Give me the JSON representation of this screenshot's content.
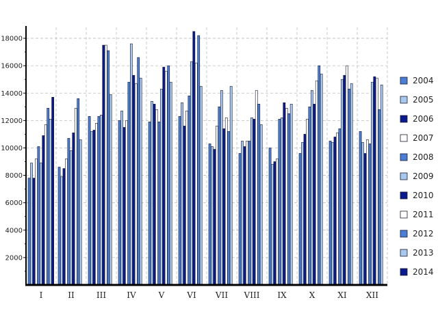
{
  "chart_data": {
    "type": "bar",
    "categories": [
      "I",
      "II",
      "III",
      "IV",
      "V",
      "VI",
      "VII",
      "VIII",
      "IX",
      "X",
      "XI",
      "XII"
    ],
    "ylim": [
      0,
      18800
    ],
    "yticks": [
      2000,
      4000,
      6000,
      8000,
      10000,
      12000,
      14000,
      16000,
      18000
    ],
    "grid": true,
    "legend_position": "right",
    "series": [
      {
        "name": "2004",
        "color": "#4a7fd4",
        "values": [
          7800,
          8600,
          12300,
          12000,
          11900,
          12300,
          10300,
          9600,
          10000,
          9600,
          10500,
          11200
        ]
      },
      {
        "name": "2005",
        "color": "#a9c8ef",
        "values": [
          8900,
          7900,
          11200,
          12700,
          13400,
          13300,
          10100,
          10500,
          8800,
          10400,
          10400,
          10400
        ]
      },
      {
        "name": "2006",
        "color": "#0a1a8c",
        "values": [
          7800,
          8500,
          11300,
          11500,
          13200,
          11600,
          9900,
          10100,
          9000,
          11000,
          10800,
          9600
        ]
      },
      {
        "name": "2007",
        "color": "#ffffff",
        "values": [
          9200,
          9200,
          11800,
          12000,
          12800,
          12700,
          11600,
          10500,
          9200,
          12100,
          11100,
          10600
        ]
      },
      {
        "name": "2008",
        "color": "#4a7fd4",
        "values": [
          10100,
          10700,
          12300,
          14800,
          11900,
          13800,
          13000,
          10500,
          12100,
          13000,
          11400,
          10300
        ]
      },
      {
        "name": "2009",
        "color": "#a9c8ef",
        "values": [
          8900,
          9800,
          12400,
          17600,
          14300,
          16300,
          14200,
          12200,
          12200,
          14200,
          15000,
          14800
        ]
      },
      {
        "name": "2010",
        "color": "#0a1a8c",
        "values": [
          10900,
          11100,
          17500,
          15300,
          15900,
          18500,
          11400,
          12100,
          13300,
          13200,
          15300,
          15200
        ]
      },
      {
        "name": "2011",
        "color": "#ffffff",
        "values": [
          11700,
          12900,
          17500,
          14700,
          15600,
          16200,
          12200,
          14200,
          12900,
          14900,
          16000,
          15100
        ]
      },
      {
        "name": "2012",
        "color": "#4a7fd4",
        "values": [
          12900,
          13600,
          17100,
          16600,
          16000,
          18200,
          11200,
          13200,
          12500,
          16000,
          14300,
          12800
        ]
      },
      {
        "name": "2013",
        "color": "#a9c8ef",
        "values": [
          12100,
          10600,
          13900,
          15100,
          14800,
          14500,
          14500,
          11700,
          13200,
          15400,
          14700,
          14600
        ]
      },
      {
        "name": "2014",
        "color": "#0a1a8c",
        "values": [
          13700,
          null,
          null,
          null,
          null,
          null,
          null,
          null,
          null,
          null,
          null,
          null
        ]
      }
    ]
  }
}
